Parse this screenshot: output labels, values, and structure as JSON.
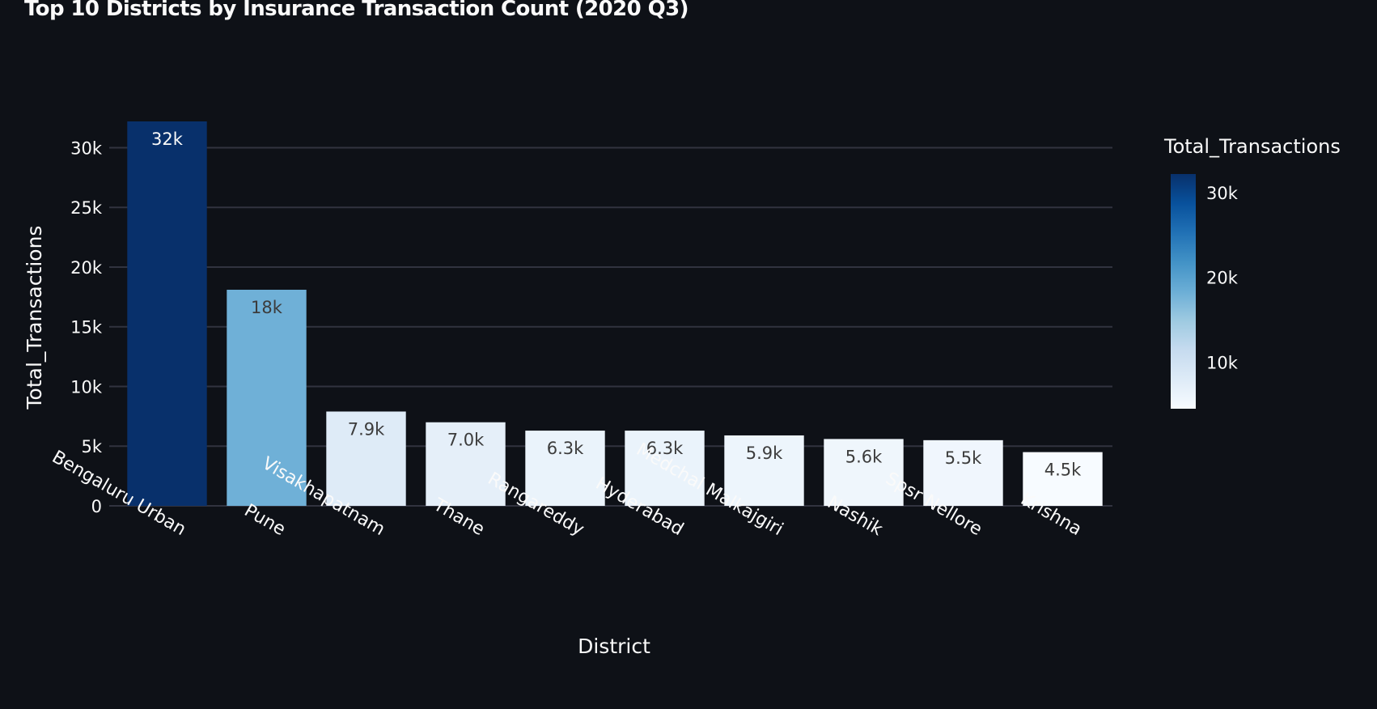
{
  "chart_data": {
    "type": "bar",
    "title": "Top 10 Districts by Insurance Transaction Count (2020 Q3)",
    "xlabel": "District",
    "ylabel": "Total_Transactions",
    "categories": [
      "Bengaluru Urban",
      "Pune",
      "Visakhapatnam",
      "Thane",
      "Rangareddy",
      "Hyderabad",
      "Medchal Malkajgiri",
      "Nashik",
      "Spsr Nellore",
      "Krishna"
    ],
    "values": [
      32200,
      18100,
      7900,
      7000,
      6300,
      6300,
      5900,
      5600,
      5500,
      4500
    ],
    "data_labels": [
      "32k",
      "18k",
      "7.9k",
      "7.0k",
      "6.3k",
      "6.3k",
      "5.9k",
      "5.6k",
      "5.5k",
      "4.5k"
    ],
    "ylim": [
      0,
      32200
    ],
    "yticks": [
      0,
      5000,
      10000,
      15000,
      20000,
      25000,
      30000
    ],
    "ytick_labels": [
      "0",
      "5k",
      "10k",
      "15k",
      "20k",
      "25k",
      "30k"
    ],
    "grid": true,
    "legend": {
      "type": "colorbar",
      "title": "Total_Transactions",
      "placement": "right",
      "range": [
        4500,
        32200
      ],
      "ticks": [
        10000,
        20000,
        30000
      ],
      "tick_labels": [
        "10k",
        "20k",
        "30k"
      ]
    },
    "colorscale": [
      "#f7fbff",
      "#deebf7",
      "#c6dbef",
      "#9ecae1",
      "#6baed6",
      "#4292c6",
      "#2171b5",
      "#08519c",
      "#08306b"
    ],
    "colors": {
      "background": "#0e1117",
      "grid": "#31333f",
      "text": "#fafafa",
      "label_on_light": "#3c3c3c"
    }
  }
}
